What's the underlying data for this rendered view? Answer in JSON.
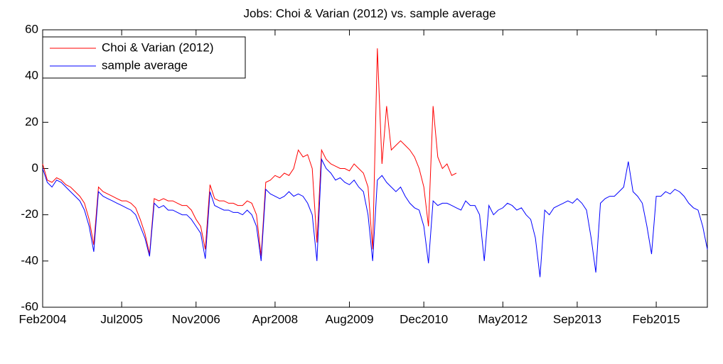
{
  "chart_data": {
    "type": "line",
    "title": "Jobs: Choi & Varian (2012) vs. sample average",
    "x": [
      "2004-02",
      "2004-03",
      "2004-04",
      "2004-05",
      "2004-06",
      "2004-07",
      "2004-08",
      "2004-09",
      "2004-10",
      "2004-11",
      "2004-12",
      "2005-01",
      "2005-02",
      "2005-03",
      "2005-04",
      "2005-05",
      "2005-06",
      "2005-07",
      "2005-08",
      "2005-09",
      "2005-10",
      "2005-11",
      "2005-12",
      "2006-01",
      "2006-02",
      "2006-03",
      "2006-04",
      "2006-05",
      "2006-06",
      "2006-07",
      "2006-08",
      "2006-09",
      "2006-10",
      "2006-11",
      "2006-12",
      "2007-01",
      "2007-02",
      "2007-03",
      "2007-04",
      "2007-05",
      "2007-06",
      "2007-07",
      "2007-08",
      "2007-09",
      "2007-10",
      "2007-11",
      "2007-12",
      "2008-01",
      "2008-02",
      "2008-03",
      "2008-04",
      "2008-05",
      "2008-06",
      "2008-07",
      "2008-08",
      "2008-09",
      "2008-10",
      "2008-11",
      "2008-12",
      "2009-01",
      "2009-02",
      "2009-03",
      "2009-04",
      "2009-05",
      "2009-06",
      "2009-07",
      "2009-08",
      "2009-09",
      "2009-10",
      "2009-11",
      "2009-12",
      "2010-01",
      "2010-02",
      "2010-03",
      "2010-04",
      "2010-05",
      "2010-06",
      "2010-07",
      "2010-08",
      "2010-09",
      "2010-10",
      "2010-11",
      "2010-12",
      "2011-01",
      "2011-02",
      "2011-03",
      "2011-04",
      "2011-05",
      "2011-06",
      "2011-07",
      "2011-08",
      "2011-09",
      "2011-10",
      "2011-11",
      "2011-12",
      "2012-01",
      "2012-02",
      "2012-03",
      "2012-04",
      "2012-05",
      "2012-06",
      "2012-07",
      "2012-08",
      "2012-09",
      "2012-10",
      "2012-11",
      "2012-12",
      "2013-01",
      "2013-02",
      "2013-03",
      "2013-04",
      "2013-05",
      "2013-06",
      "2013-07",
      "2013-08",
      "2013-09",
      "2013-10",
      "2013-11",
      "2013-12",
      "2014-01",
      "2014-02",
      "2014-03",
      "2014-04",
      "2014-05",
      "2014-06",
      "2014-07",
      "2014-08",
      "2014-09",
      "2014-10",
      "2014-11",
      "2014-12",
      "2015-01",
      "2015-02",
      "2015-03",
      "2015-04",
      "2015-05",
      "2015-06",
      "2015-07",
      "2015-08",
      "2015-09",
      "2015-10",
      "2015-11",
      "2015-12",
      "2016-01"
    ],
    "series": [
      {
        "name": "Choi & Varian (2012)",
        "color": "#ff0000",
        "values": [
          2,
          -5,
          -6,
          -4,
          -5,
          -7,
          -8,
          -10,
          -12,
          -15,
          -22,
          -33,
          -8,
          -10,
          -11,
          -12,
          -13,
          -14,
          -14,
          -15,
          -17,
          -22,
          -28,
          -37,
          -13,
          -14,
          -13,
          -14,
          -14,
          -15,
          -16,
          -16,
          -18,
          -22,
          -25,
          -35,
          -7,
          -13,
          -14,
          -14,
          -15,
          -15,
          -16,
          -16,
          -14,
          -15,
          -20,
          -38,
          -6,
          -5,
          -3,
          -4,
          -2,
          -3,
          0,
          8,
          5,
          6,
          0,
          -32,
          8,
          4,
          2,
          1,
          0,
          0,
          -1,
          2,
          0,
          -2,
          -8,
          -35,
          52,
          2,
          27,
          8,
          10,
          12,
          10,
          8,
          5,
          0,
          -8,
          -25,
          27,
          5,
          0,
          2,
          -3,
          -2,
          null,
          null,
          null,
          null,
          null,
          null,
          null,
          null,
          null,
          null,
          null,
          null,
          null,
          null,
          null,
          null,
          null,
          null,
          null,
          null,
          null,
          null,
          null,
          null,
          null,
          null,
          null,
          null,
          null,
          null,
          null,
          null,
          null,
          null,
          null,
          null,
          null,
          null,
          null,
          null,
          null,
          null,
          null,
          null,
          null,
          null,
          null,
          null,
          null,
          null,
          null,
          null,
          null,
          null
        ]
      },
      {
        "name": "sample average",
        "color": "#0000ff",
        "values": [
          0,
          -6,
          -8,
          -5,
          -6,
          -8,
          -10,
          -12,
          -14,
          -18,
          -25,
          -36,
          -10,
          -12,
          -13,
          -14,
          -15,
          -16,
          -17,
          -18,
          -20,
          -25,
          -30,
          -38,
          -15,
          -17,
          -16,
          -18,
          -18,
          -19,
          -20,
          -20,
          -22,
          -25,
          -28,
          -39,
          -10,
          -16,
          -17,
          -18,
          -18,
          -19,
          -19,
          -20,
          -18,
          -20,
          -25,
          -40,
          -9,
          -11,
          -12,
          -13,
          -12,
          -10,
          -12,
          -11,
          -12,
          -15,
          -20,
          -40,
          4,
          0,
          -2,
          -5,
          -4,
          -6,
          -7,
          -5,
          -8,
          -10,
          -20,
          -40,
          -5,
          -3,
          -6,
          -8,
          -10,
          -8,
          -12,
          -15,
          -17,
          -18,
          -25,
          -41,
          -14,
          -16,
          -15,
          -15,
          -16,
          -17,
          -18,
          -14,
          -16,
          -16,
          -20,
          -40,
          -16,
          -20,
          -18,
          -17,
          -15,
          -16,
          -18,
          -17,
          -20,
          -22,
          -30,
          -47,
          -18,
          -20,
          -17,
          -16,
          -15,
          -14,
          -15,
          -13,
          -15,
          -18,
          -30,
          -45,
          -15,
          -13,
          -12,
          -12,
          -10,
          -8,
          3,
          -10,
          -12,
          -15,
          -25,
          -37,
          -12,
          -12,
          -10,
          -11,
          -9,
          -10,
          -12,
          -15,
          -17,
          -18,
          -25,
          -35
        ]
      }
    ],
    "xlim": [
      "2004-02",
      "2016-01"
    ],
    "xticks": [
      {
        "value": "2004-02",
        "label": "Feb2004"
      },
      {
        "value": "2005-07",
        "label": "Jul2005"
      },
      {
        "value": "2006-11",
        "label": "Nov2006"
      },
      {
        "value": "2008-04",
        "label": "Apr2008"
      },
      {
        "value": "2009-08",
        "label": "Aug2009"
      },
      {
        "value": "2010-12",
        "label": "Dec2010"
      },
      {
        "value": "2012-05",
        "label": "May2012"
      },
      {
        "value": "2013-09",
        "label": "Sep2013"
      },
      {
        "value": "2015-02",
        "label": "Feb2015"
      }
    ],
    "ylim": [
      -60,
      60
    ],
    "yticks": [
      -60,
      -40,
      -20,
      0,
      20,
      40,
      60
    ],
    "legend": "upper left"
  }
}
